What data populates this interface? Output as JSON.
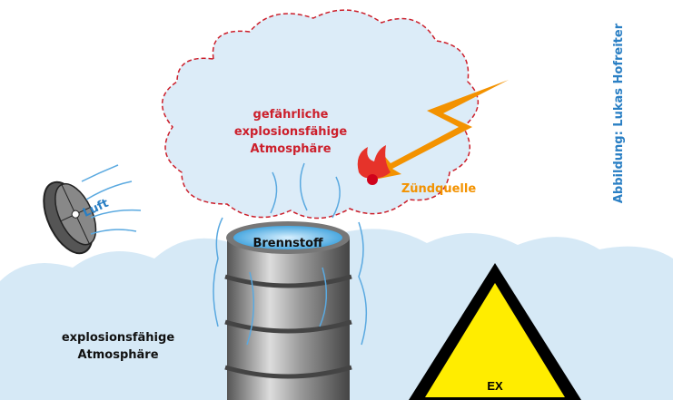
{
  "labels": {
    "hazard_zone": [
      "gefährliche",
      "explosionsfähige",
      "Atmosphäre"
    ],
    "ignition": "Zündquelle",
    "air": "Luft",
    "fuel": "Brennstoff",
    "atmosphere": [
      "explosionsfähige",
      "Atmosphäre"
    ],
    "sign": "EX",
    "credit": "Abbildung: Lukas Hofreiter"
  }
}
